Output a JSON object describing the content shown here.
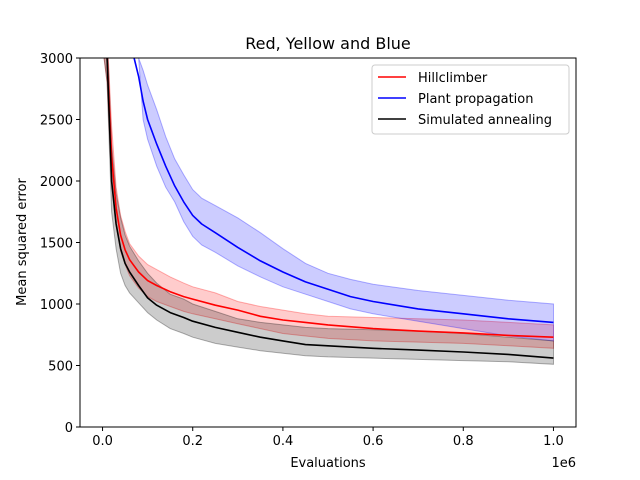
{
  "chart_data": {
    "type": "line",
    "title": "Red, Yellow and Blue",
    "xlabel": "Evaluations",
    "ylabel": "Mean squared error",
    "x_offset_label": "1e6",
    "xlim": [
      -0.05,
      1.05
    ],
    "ylim": [
      0,
      3000
    ],
    "x_ticks": [
      0.0,
      0.2,
      0.4,
      0.6,
      0.8,
      1.0
    ],
    "x_tick_labels": [
      "0.0",
      "0.2",
      "0.4",
      "0.6",
      "0.8",
      "1.0"
    ],
    "y_ticks": [
      0,
      500,
      1000,
      1500,
      2000,
      2500,
      3000
    ],
    "y_tick_labels": [
      "0",
      "500",
      "1000",
      "1500",
      "2000",
      "2500",
      "3000"
    ],
    "grid": false,
    "legend_position": "top-right",
    "series": [
      {
        "name": "Hillclimber",
        "color": "#ff0000",
        "band_color": "#ff0000",
        "x": [
          0.0,
          0.01,
          0.02,
          0.03,
          0.04,
          0.05,
          0.06,
          0.08,
          0.1,
          0.12,
          0.15,
          0.18,
          0.2,
          0.25,
          0.3,
          0.35,
          0.4,
          0.45,
          0.5,
          0.6,
          0.7,
          0.8,
          0.9,
          1.0
        ],
        "mean": [
          3200,
          3000,
          2200,
          1780,
          1560,
          1440,
          1360,
          1260,
          1190,
          1150,
          1100,
          1060,
          1040,
          990,
          950,
          900,
          870,
          850,
          830,
          800,
          780,
          765,
          745,
          730
        ],
        "upper": [
          3300,
          3200,
          2450,
          1950,
          1720,
          1590,
          1490,
          1390,
          1320,
          1280,
          1220,
          1170,
          1140,
          1090,
          1020,
          980,
          950,
          920,
          900,
          890,
          880,
          870,
          850,
          830
        ],
        "lower": [
          3100,
          2800,
          2000,
          1640,
          1430,
          1320,
          1230,
          1130,
          1060,
          1020,
          980,
          940,
          920,
          880,
          840,
          800,
          760,
          740,
          720,
          700,
          690,
          680,
          660,
          640
        ]
      },
      {
        "name": "Plant propagation",
        "color": "#0000ff",
        "band_color": "#0000ff",
        "x": [
          0.07,
          0.08,
          0.09,
          0.1,
          0.12,
          0.14,
          0.16,
          0.18,
          0.2,
          0.22,
          0.25,
          0.3,
          0.35,
          0.4,
          0.45,
          0.5,
          0.55,
          0.6,
          0.7,
          0.8,
          0.9,
          1.0
        ],
        "mean": [
          3000,
          2850,
          2650,
          2500,
          2300,
          2120,
          1960,
          1830,
          1720,
          1650,
          1580,
          1460,
          1350,
          1260,
          1180,
          1120,
          1060,
          1020,
          960,
          920,
          880,
          850
        ],
        "upper": [
          3000,
          3000,
          2900,
          2780,
          2580,
          2360,
          2180,
          2050,
          1930,
          1860,
          1800,
          1700,
          1580,
          1450,
          1330,
          1250,
          1200,
          1160,
          1110,
          1070,
          1030,
          1000
        ],
        "lower": [
          3000,
          3000,
          2500,
          2340,
          2120,
          1950,
          1830,
          1670,
          1550,
          1480,
          1420,
          1310,
          1220,
          1140,
          1080,
          1020,
          960,
          920,
          860,
          800,
          740,
          700
        ]
      },
      {
        "name": "Simulated annealing",
        "color": "#000000",
        "band_color": "#000000",
        "x": [
          0.0,
          0.01,
          0.02,
          0.03,
          0.04,
          0.05,
          0.06,
          0.08,
          0.1,
          0.12,
          0.15,
          0.18,
          0.2,
          0.25,
          0.3,
          0.35,
          0.4,
          0.45,
          0.5,
          0.6,
          0.7,
          0.8,
          0.9,
          1.0
        ],
        "mean": [
          3200,
          3000,
          2000,
          1650,
          1450,
          1330,
          1260,
          1150,
          1050,
          990,
          930,
          890,
          860,
          810,
          770,
          730,
          700,
          670,
          660,
          640,
          625,
          610,
          590,
          560
        ],
        "upper": [
          3300,
          3200,
          2300,
          1900,
          1700,
          1560,
          1470,
          1350,
          1250,
          1170,
          1080,
          1040,
          1000,
          940,
          880,
          850,
          830,
          810,
          800,
          790,
          780,
          760,
          730,
          700
        ],
        "lower": [
          3100,
          2800,
          1750,
          1450,
          1250,
          1150,
          1090,
          1010,
          930,
          870,
          800,
          760,
          730,
          680,
          650,
          620,
          600,
          580,
          570,
          560,
          550,
          540,
          530,
          510
        ]
      }
    ]
  }
}
